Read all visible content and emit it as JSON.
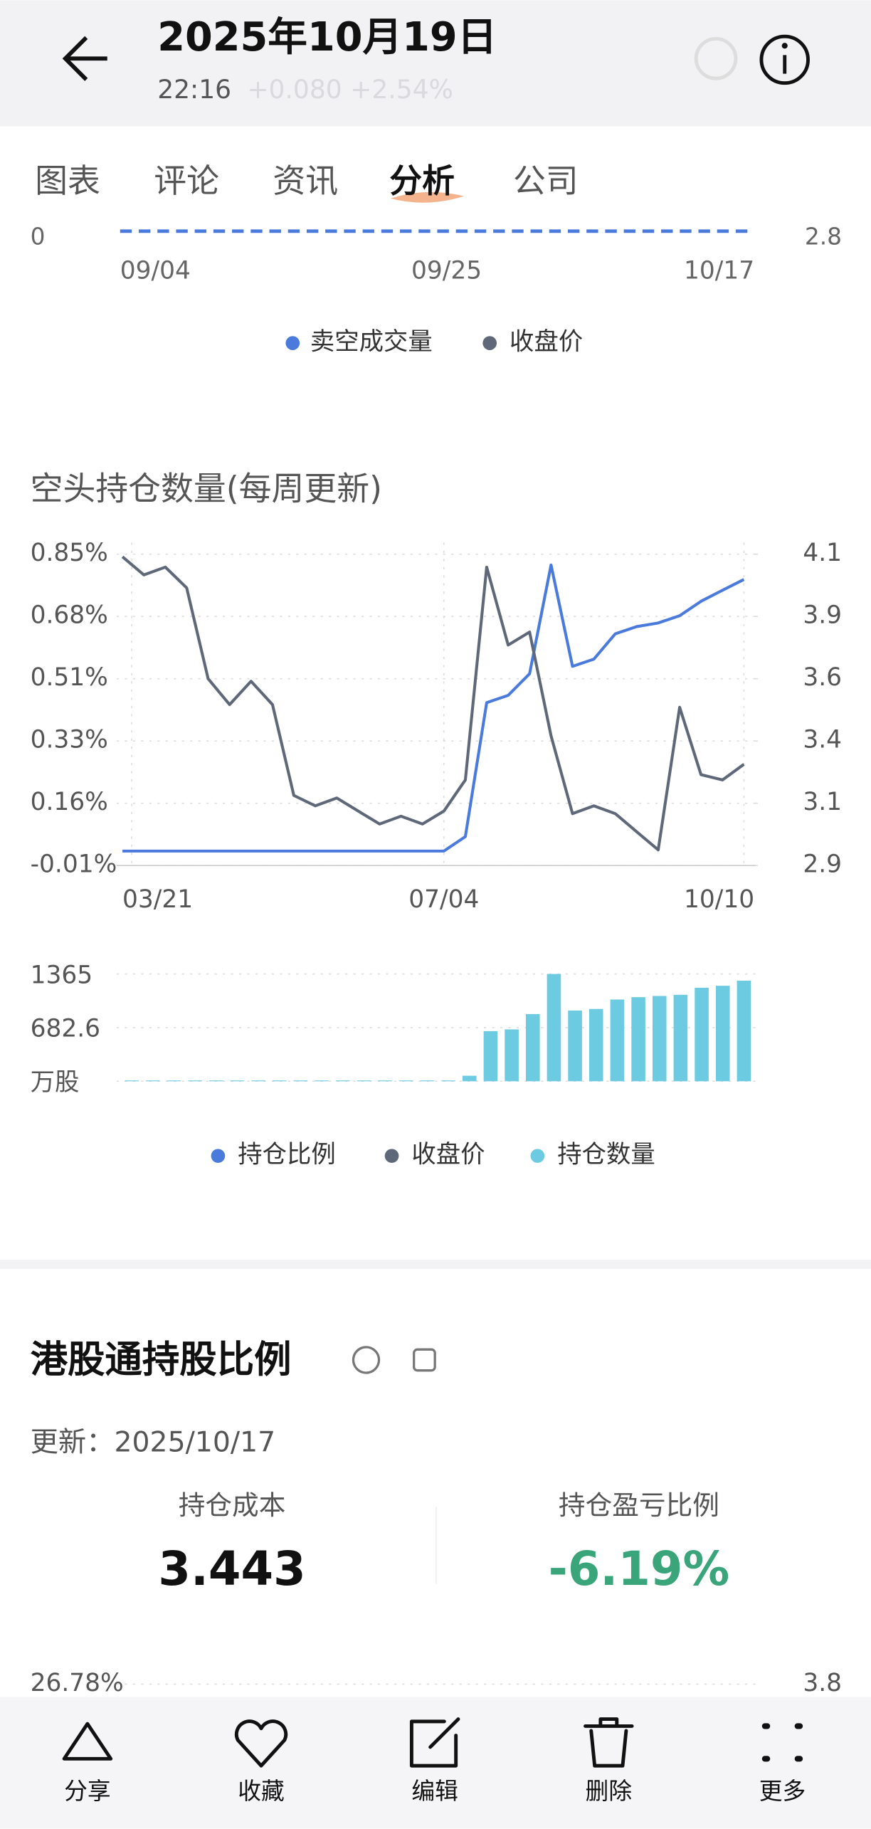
{
  "header": {
    "title": "2025年10月19日",
    "time": "22:16",
    "change": "+0.080 +2.54%"
  },
  "tabs": [
    "图表",
    "评论",
    "资讯",
    "分析",
    "公司"
  ],
  "active_tab": 3,
  "volume_chart": {
    "type": "line",
    "y_left_label": "0",
    "y_right_label": "2.8",
    "x_labels": [
      "09/04",
      "09/25",
      "10/17"
    ],
    "legend": [
      {
        "name": "卖空成交量",
        "color": "#4a7bdc"
      },
      {
        "name": "收盘价",
        "color": "#5f6878"
      }
    ]
  },
  "short_chart": {
    "type": "line",
    "title": "空头持仓数量(每周更新)",
    "categories": [
      "03/21",
      null,
      null,
      null,
      null,
      null,
      null,
      null,
      null,
      null,
      null,
      null,
      null,
      null,
      null,
      "07/04",
      null,
      null,
      null,
      null,
      null,
      null,
      null,
      null,
      null,
      null,
      null,
      null,
      null,
      "10/10"
    ],
    "series": [
      {
        "name": "持仓比例",
        "color": "#4a7bdc",
        "axis": "y",
        "values": [
          0.03,
          0.03,
          0.03,
          0.03,
          0.03,
          0.03,
          0.03,
          0.03,
          0.03,
          0.03,
          0.03,
          0.03,
          0.03,
          0.03,
          0.03,
          0.03,
          0.07,
          0.44,
          0.46,
          0.52,
          0.82,
          0.54,
          0.56,
          0.63,
          0.65,
          0.66,
          0.68,
          0.72,
          0.75,
          0.78
        ]
      },
      {
        "name": "收盘价",
        "color": "#5f6878",
        "axis": "y2",
        "values": [
          4.09,
          4.02,
          4.05,
          3.97,
          3.62,
          3.52,
          3.61,
          3.52,
          3.17,
          3.13,
          3.16,
          3.11,
          3.06,
          3.09,
          3.06,
          3.11,
          3.23,
          4.05,
          3.75,
          3.8,
          3.4,
          3.1,
          3.13,
          3.1,
          3.03,
          2.96,
          3.51,
          3.25,
          3.23,
          3.29
        ]
      }
    ],
    "ylim": [
      -0.01,
      0.85
    ],
    "yticks": [
      {
        "value": 0.85,
        "label": "0.85%"
      },
      {
        "value": 0.678,
        "label": "0.68%"
      },
      {
        "value": 0.506,
        "label": "0.51%"
      },
      {
        "value": 0.334,
        "label": "0.33%"
      },
      {
        "value": 0.162,
        "label": "0.16%"
      },
      {
        "value": -0.01,
        "label": "-0.01%"
      }
    ],
    "y2lim": [
      2.9,
      4.1
    ],
    "y2ticks": [
      4.1,
      {
        "value": 3.86,
        "label": "3.9"
      },
      {
        "value": 3.62,
        "label": "3.6"
      },
      {
        "value": 3.38,
        "label": "3.4"
      },
      {
        "value": 3.14,
        "label": "3.1"
      },
      2.9
    ],
    "grid": true,
    "bars": {
      "name": "持仓数量",
      "color": "#6ccbe0",
      "ylim": [
        0,
        1365
      ],
      "yticks": [
        1365,
        682.6,
        {
          "value": 0,
          "label": "万股"
        }
      ],
      "values": [
        10,
        10,
        10,
        10,
        10,
        10,
        10,
        10,
        10,
        10,
        10,
        10,
        10,
        10,
        10,
        10,
        70,
        638,
        660,
        855,
        1365,
        900,
        920,
        1040,
        1070,
        1085,
        1100,
        1190,
        1215,
        1280
      ]
    }
  },
  "hk_connect": {
    "title": "港股通持股比例",
    "update": "更新：2025/10/17",
    "cost_label": "持仓成本",
    "cost": "3.443",
    "pl_label": "持仓盈亏比例",
    "pl": "-6.19%",
    "chart_left_top": "26.78%",
    "chart_right_top": "3.8"
  },
  "toolbar": [
    "分享",
    "收藏",
    "编辑",
    "删除",
    "更多"
  ]
}
